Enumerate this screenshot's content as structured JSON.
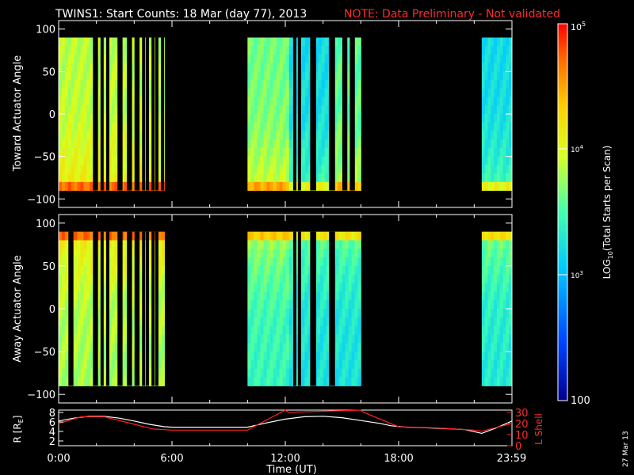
{
  "chart_data": [
    {
      "type": "heatmap",
      "title": "TWINS1: Start Counts: 18 Mar (day  77), 2013",
      "note": "NOTE: Data Preliminary - Not validated",
      "ylabel": "Toward Actuator Angle",
      "ylim": [
        -110,
        110
      ],
      "yticks": [
        100,
        50,
        0,
        -50,
        -100
      ],
      "data_ylim": [
        -90,
        90
      ],
      "xlim": [
        0,
        24
      ],
      "segments": [
        {
          "t0": 0.0,
          "t1": 5.6,
          "base": 0.62
        },
        {
          "t0": 10.0,
          "t1": 12.2,
          "base": 0.55
        },
        {
          "t0": 12.2,
          "t1": 14.6,
          "base": 0.4
        },
        {
          "t0": 14.6,
          "t1": 16.0,
          "base": 0.52
        },
        {
          "t0": 22.4,
          "t1": 24.0,
          "base": 0.4
        }
      ],
      "gaps": [
        1.9,
        2.0,
        2.3,
        2.6,
        3.2,
        3.3,
        3.7,
        3.8,
        4.1,
        4.2,
        4.5,
        4.7,
        5.0,
        5.2,
        5.5,
        12.5,
        12.75,
        13.4,
        13.55,
        14.4,
        14.55,
        15.1,
        15.2,
        15.5,
        15.6
      ]
    },
    {
      "type": "heatmap",
      "ylabel": "Away Actuator Angle",
      "ylim": [
        -110,
        110
      ],
      "yticks": [
        100,
        50,
        0,
        -50,
        -100
      ],
      "data_ylim": [
        -90,
        90
      ],
      "xlim": [
        0,
        24
      ],
      "segments": [
        {
          "t0": 0.0,
          "t1": 5.6,
          "base": 0.6
        },
        {
          "t0": 10.0,
          "t1": 12.2,
          "base": 0.48
        },
        {
          "t0": 12.2,
          "t1": 16.0,
          "base": 0.42
        },
        {
          "t0": 22.4,
          "t1": 24.0,
          "base": 0.44
        }
      ],
      "gaps": [
        0.6,
        0.7,
        1.9,
        2.0,
        2.3,
        2.6,
        3.2,
        3.3,
        3.7,
        3.8,
        4.1,
        4.2,
        4.5,
        4.7,
        5.0,
        5.2,
        12.5,
        12.75,
        13.4,
        13.55,
        14.4,
        14.55
      ]
    },
    {
      "type": "line",
      "ylabel": "R [R",
      "ylabel_sub": "E",
      "ylabel_end": "]",
      "y2label": "L Shell",
      "ylim": [
        1,
        8.5
      ],
      "yticks": [
        2,
        4,
        6,
        8
      ],
      "y2lim": [
        0,
        32
      ],
      "y2ticks": [
        0,
        10,
        20,
        30
      ],
      "xlim": [
        0,
        24
      ],
      "xticks": [
        "0:00",
        "6:00",
        "12:00",
        "18:00",
        "23:59"
      ],
      "xtick_values": [
        0,
        6,
        12,
        18,
        23.98
      ],
      "xlabel": "Time (UT)",
      "series": [
        {
          "values_x": [
            0,
            0.8,
            1.6,
            2.4,
            3.2,
            4.0,
            4.8,
            5.6,
            6.0,
            8.0,
            10.0,
            11.0,
            12.0,
            13.0,
            14.0,
            15.0,
            16.0,
            17.0,
            17.6,
            18.4,
            19.2,
            20.5,
            21.5,
            22.4,
            23.2,
            24.0
          ],
          "values": [
            6.2,
            6.8,
            7.2,
            7.2,
            6.8,
            6.2,
            5.5,
            5.0,
            4.9,
            4.9,
            4.9,
            5.8,
            6.6,
            7.1,
            7.2,
            6.9,
            6.3,
            5.7,
            5.2,
            4.9,
            4.8,
            4.6,
            4.4,
            3.6,
            4.8,
            6.2
          ]
        },
        {
          "axis": "y2",
          "values_x": [
            0,
            1.2,
            2.4,
            3.6,
            5.0,
            6.0,
            8.0,
            10.0,
            12.0,
            12.15,
            16.0,
            16.15,
            18.0,
            20.0,
            22.0,
            22.4,
            24.0
          ],
          "values": [
            20,
            26,
            26,
            21,
            15,
            14,
            14,
            14,
            32,
            30,
            32,
            30,
            17,
            16,
            14,
            13,
            20
          ]
        }
      ]
    }
  ],
  "colorbar": {
    "label": "LOG",
    "label_sub": "10",
    "label_end": "(Total Starts per Scan)",
    "tick_top_base": "10",
    "tick_top_exp": "5",
    "tick_mid_base": "10",
    "tick_mid_exp": "4",
    "tick_low_base": "10",
    "tick_low_exp": "3",
    "tick_bottom": "100"
  },
  "footer_date": "27 Mar 13"
}
